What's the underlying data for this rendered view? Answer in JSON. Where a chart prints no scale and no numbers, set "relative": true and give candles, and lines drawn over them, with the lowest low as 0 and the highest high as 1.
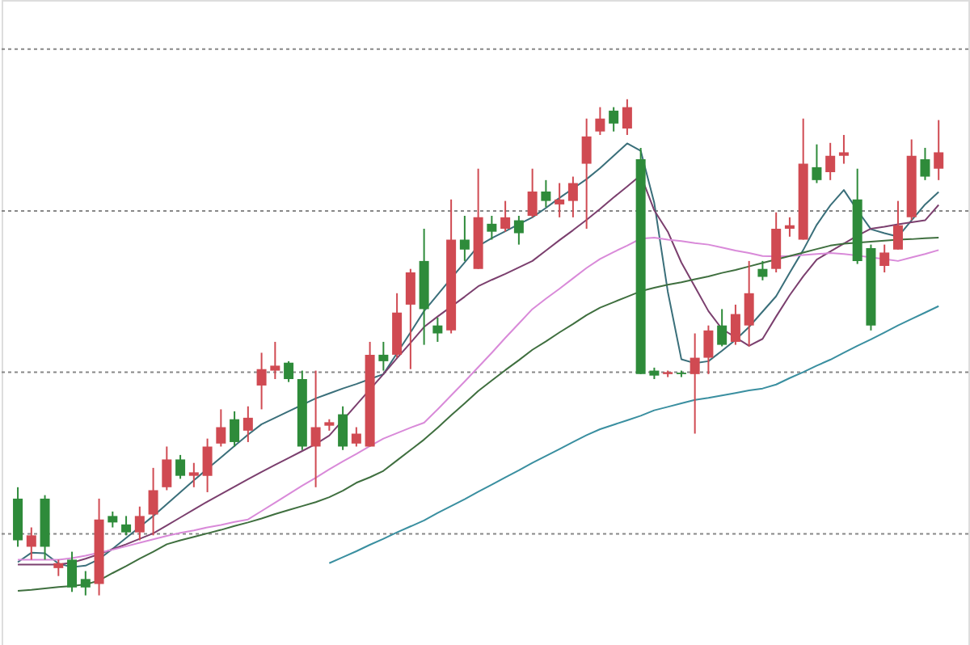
{
  "chart_data": {
    "type": "candlestick",
    "relative": true,
    "ref_lines": [
      {
        "axis": "y",
        "value": 1.101,
        "color": "#888888",
        "line_style": "dotted"
      },
      {
        "axis": "y",
        "value": 0.775,
        "color": "#888888",
        "line_style": "dotted"
      },
      {
        "axis": "y",
        "value": 0.45,
        "color": "#888888",
        "line_style": "dotted"
      },
      {
        "axis": "y",
        "value": 0.124,
        "color": "#888888",
        "line_style": "dotted"
      }
    ],
    "categories": [
      null,
      null,
      null,
      null,
      null,
      null,
      null,
      null,
      null,
      null,
      null,
      null,
      null,
      null,
      null,
      null,
      null,
      null,
      null,
      null,
      null,
      null,
      null,
      null,
      null,
      null,
      null,
      null,
      null,
      null,
      null,
      null,
      null,
      null,
      null,
      null,
      null,
      null,
      null,
      null,
      null,
      null,
      null,
      null,
      null,
      null,
      null,
      null,
      null,
      null,
      null,
      null,
      null,
      null,
      null,
      null,
      null,
      null,
      null,
      null,
      null,
      null,
      null,
      null,
      null,
      null,
      null,
      null,
      null
    ],
    "ohlc": [
      [
        0.195,
        0.218,
        0.098,
        0.111
      ],
      [
        0.098,
        0.137,
        0.072,
        0.121
      ],
      [
        0.195,
        0.202,
        0.072,
        0.098
      ],
      [
        0.055,
        0.072,
        0.039,
        0.065
      ],
      [
        0.072,
        0.088,
        0.007,
        0.016
      ],
      [
        0.033,
        0.049,
        0,
        0.016
      ],
      [
        0.023,
        0.195,
        0,
        0.153
      ],
      [
        0.16,
        0.169,
        0.137,
        0.147
      ],
      [
        0.143,
        0.16,
        0.121,
        0.127
      ],
      [
        0.127,
        0.179,
        0.111,
        0.16
      ],
      [
        0.163,
        0.257,
        0.121,
        0.212
      ],
      [
        0.218,
        0.3,
        0.212,
        0.274
      ],
      [
        0.274,
        0.283,
        0.235,
        0.241
      ],
      [
        0.241,
        0.267,
        0.218,
        0.248
      ],
      [
        0.241,
        0.316,
        0.208,
        0.3
      ],
      [
        0.306,
        0.375,
        0.3,
        0.339
      ],
      [
        0.355,
        0.371,
        0.3,
        0.309
      ],
      [
        0.332,
        0.381,
        0.309,
        0.358
      ],
      [
        0.423,
        0.489,
        0.375,
        0.456
      ],
      [
        0.453,
        0.511,
        0.436,
        0.463
      ],
      [
        0.469,
        0.472,
        0.43,
        0.436
      ],
      [
        0.436,
        0.453,
        0.293,
        0.3
      ],
      [
        0.3,
        0.453,
        0.218,
        0.339
      ],
      [
        0.342,
        0.355,
        0.332,
        0.349
      ],
      [
        0.365,
        0.381,
        0.293,
        0.3
      ],
      [
        0.306,
        0.339,
        0.3,
        0.326
      ],
      [
        0.3,
        0.511,
        0.3,
        0.485
      ],
      [
        0.485,
        0.511,
        0.453,
        0.472
      ],
      [
        0.485,
        0.609,
        0.479,
        0.57
      ],
      [
        0.586,
        0.658,
        0.456,
        0.651
      ],
      [
        0.674,
        0.739,
        0.505,
        0.577
      ],
      [
        0.544,
        0.56,
        0.511,
        0.528
      ],
      [
        0.534,
        0.798,
        0.528,
        0.717
      ],
      [
        0.717,
        0.765,
        0.674,
        0.697
      ],
      [
        0.658,
        0.86,
        0.658,
        0.762
      ],
      [
        0.749,
        0.765,
        0.717,
        0.733
      ],
      [
        0.739,
        0.795,
        0.733,
        0.762
      ],
      [
        0.756,
        0.765,
        0.707,
        0.73
      ],
      [
        0.765,
        0.86,
        0.762,
        0.814
      ],
      [
        0.814,
        0.837,
        0.782,
        0.795
      ],
      [
        0.788,
        0.831,
        0.762,
        0.798
      ],
      [
        0.795,
        0.844,
        0.762,
        0.831
      ],
      [
        0.87,
        0.961,
        0.739,
        0.925
      ],
      [
        0.935,
        0.984,
        0.928,
        0.961
      ],
      [
        0.977,
        0.984,
        0.935,
        0.951
      ],
      [
        0.941,
        1,
        0.928,
        0.984
      ],
      [
        0.879,
        0.902,
        0.446,
        0.446
      ],
      [
        0.453,
        0.459,
        0.436,
        0.443
      ],
      [
        0.446,
        0.453,
        0.44,
        0.45
      ],
      [
        0.446,
        0.453,
        0.44,
        0.449
      ],
      [
        0.446,
        0.528,
        0.326,
        0.479
      ],
      [
        0.479,
        0.544,
        0.446,
        0.534
      ],
      [
        0.544,
        0.577,
        0.502,
        0.505
      ],
      [
        0.511,
        0.586,
        0.505,
        0.567
      ],
      [
        0.544,
        0.674,
        0.502,
        0.609
      ],
      [
        0.658,
        0.674,
        0.635,
        0.642
      ],
      [
        0.658,
        0.772,
        0.651,
        0.739
      ],
      [
        0.739,
        0.762,
        0.723,
        0.746
      ],
      [
        0.717,
        0.961,
        0.717,
        0.87
      ],
      [
        0.863,
        0.909,
        0.831,
        0.837
      ],
      [
        0.853,
        0.912,
        0.837,
        0.886
      ],
      [
        0.886,
        0.928,
        0.87,
        0.893
      ],
      [
        0.798,
        0.86,
        0.668,
        0.674
      ],
      [
        0.7,
        0.707,
        0.534,
        0.544
      ],
      [
        0.664,
        0.707,
        0.651,
        0.691
      ],
      [
        0.697,
        0.795,
        0.697,
        0.746
      ],
      [
        0.762,
        0.919,
        0.756,
        0.886
      ],
      [
        0.879,
        0.902,
        0.837,
        0.844
      ],
      [
        0.86,
        0.958,
        0.837,
        0.893
      ]
    ],
    "colors": [
      "#2e8b3a",
      "#d04a52",
      "#2e8b3a",
      "#d04a52",
      "#2e8b3a",
      "#2e8b3a",
      "#d04a52",
      "#2e8b3a",
      "#2e8b3a",
      "#d04a52",
      "#d04a52",
      "#d04a52",
      "#2e8b3a",
      "#d04a52",
      "#d04a52",
      "#d04a52",
      "#2e8b3a",
      "#d04a52",
      "#d04a52",
      "#d04a52",
      "#2e8b3a",
      "#2e8b3a",
      "#d04a52",
      "#d04a52",
      "#2e8b3a",
      "#d04a52",
      "#d04a52",
      "#2e8b3a",
      "#d04a52",
      "#d04a52",
      "#2e8b3a",
      "#2e8b3a",
      "#d04a52",
      "#2e8b3a",
      "#d04a52",
      "#2e8b3a",
      "#d04a52",
      "#2e8b3a",
      "#d04a52",
      "#2e8b3a",
      "#d04a52",
      "#d04a52",
      "#d04a52",
      "#d04a52",
      "#2e8b3a",
      "#d04a52",
      "#2e8b3a",
      "#2e8b3a",
      "#d04a52",
      "#2e8b3a",
      "#d04a52",
      "#d04a52",
      "#2e8b3a",
      "#d04a52",
      "#d04a52",
      "#2e8b3a",
      "#d04a52",
      "#d04a52",
      "#d04a52",
      "#2e8b3a",
      "#d04a52",
      "#d04a52",
      "#2e8b3a",
      "#2e8b3a",
      "#d04a52",
      "#d04a52",
      "#d04a52",
      "#2e8b3a",
      "#d04a52"
    ],
    "series": [
      {
        "type": "line",
        "color": "#3a6f7a",
        "values": [
          0.067,
          0.086,
          0.085,
          0.064,
          0.057,
          0.06,
          0.073,
          0.094,
          0.116,
          0.138,
          0.16,
          0.184,
          0.208,
          0.232,
          0.255,
          0.278,
          0.301,
          0.324,
          0.345,
          0.358,
          0.371,
          0.384,
          0.397,
          0.407,
          0.417,
          0.426,
          0.436,
          0.446,
          0.488,
          0.53,
          0.573,
          0.606,
          0.639,
          0.671,
          0.704,
          0.72,
          0.734,
          0.748,
          0.762,
          0.781,
          0.801,
          0.82,
          0.839,
          0.861,
          0.886,
          0.911,
          0.896,
          0.791,
          0.612,
          0.476,
          0.468,
          0.472,
          0.493,
          0.515,
          0.541,
          0.572,
          0.603,
          0.65,
          0.696,
          0.747,
          0.786,
          0.817,
          0.776,
          0.738,
          0.73,
          0.723,
          0.756,
          0.788,
          0.813
        ]
      },
      {
        "type": "line",
        "color": "#7b3f6e",
        "values": [
          0.062,
          0.062,
          0.062,
          0.062,
          0.066,
          0.074,
          0.083,
          0.093,
          0.103,
          0.114,
          0.125,
          0.141,
          0.157,
          0.173,
          0.189,
          0.204,
          0.219,
          0.234,
          0.249,
          0.263,
          0.277,
          0.291,
          0.305,
          0.322,
          0.353,
          0.384,
          0.415,
          0.446,
          0.478,
          0.509,
          0.541,
          0.562,
          0.582,
          0.602,
          0.623,
          0.636,
          0.648,
          0.661,
          0.674,
          0.695,
          0.716,
          0.736,
          0.757,
          0.779,
          0.802,
          0.824,
          0.847,
          0.776,
          0.733,
          0.671,
          0.622,
          0.573,
          0.537,
          0.52,
          0.503,
          0.517,
          0.562,
          0.605,
          0.643,
          0.677,
          0.693,
          0.709,
          0.725,
          0.739,
          0.743,
          0.748,
          0.752,
          0.756,
          0.787
        ]
      },
      {
        "type": "line",
        "color": "#d98ad9",
        "values": [
          0.072,
          0.072,
          0.072,
          0.072,
          0.075,
          0.08,
          0.086,
          0.092,
          0.099,
          0.106,
          0.113,
          0.12,
          0.126,
          0.131,
          0.137,
          0.142,
          0.148,
          0.153,
          0.17,
          0.187,
          0.204,
          0.221,
          0.237,
          0.254,
          0.27,
          0.285,
          0.301,
          0.316,
          0.327,
          0.338,
          0.348,
          0.375,
          0.403,
          0.431,
          0.46,
          0.489,
          0.519,
          0.548,
          0.577,
          0.598,
          0.618,
          0.639,
          0.66,
          0.678,
          0.692,
          0.705,
          0.719,
          0.721,
          0.717,
          0.714,
          0.71,
          0.707,
          0.701,
          0.695,
          0.69,
          0.684,
          0.683,
          0.684,
          0.686,
          0.688,
          0.69,
          0.688,
          0.685,
          0.681,
          0.678,
          0.674,
          0.681,
          0.688,
          0.696
        ]
      },
      {
        "type": "line",
        "color": "#3f6f3f",
        "values": [
          0.009,
          0.011,
          0.014,
          0.017,
          0.019,
          0.022,
          0.03,
          0.045,
          0.059,
          0.074,
          0.088,
          0.103,
          0.111,
          0.118,
          0.125,
          0.132,
          0.14,
          0.147,
          0.155,
          0.164,
          0.172,
          0.18,
          0.188,
          0.198,
          0.211,
          0.227,
          0.238,
          0.251,
          0.272,
          0.293,
          0.314,
          0.338,
          0.363,
          0.387,
          0.412,
          0.433,
          0.454,
          0.474,
          0.495,
          0.512,
          0.53,
          0.547,
          0.565,
          0.58,
          0.591,
          0.602,
          0.613,
          0.62,
          0.626,
          0.631,
          0.637,
          0.643,
          0.65,
          0.656,
          0.663,
          0.67,
          0.677,
          0.684,
          0.691,
          0.698,
          0.705,
          0.709,
          0.711,
          0.713,
          0.715,
          0.717,
          0.718,
          0.72,
          0.721
        ]
      },
      {
        "type": "line",
        "color": "#3a8fa0",
        "values": [
          null,
          null,
          null,
          null,
          null,
          null,
          null,
          null,
          null,
          null,
          null,
          null,
          null,
          null,
          null,
          null,
          null,
          null,
          null,
          null,
          null,
          null,
          null,
          0.065,
          0.077,
          0.089,
          0.102,
          0.114,
          0.127,
          0.139,
          0.151,
          0.166,
          0.18,
          0.194,
          0.209,
          0.223,
          0.238,
          0.252,
          0.267,
          0.281,
          0.295,
          0.309,
          0.323,
          0.335,
          0.344,
          0.353,
          0.362,
          0.373,
          0.38,
          0.387,
          0.394,
          0.398,
          0.403,
          0.408,
          0.413,
          0.417,
          0.425,
          0.438,
          0.45,
          0.463,
          0.475,
          0.489,
          0.503,
          0.516,
          0.53,
          0.544,
          0.557,
          0.57,
          0.583
        ]
      }
    ]
  }
}
